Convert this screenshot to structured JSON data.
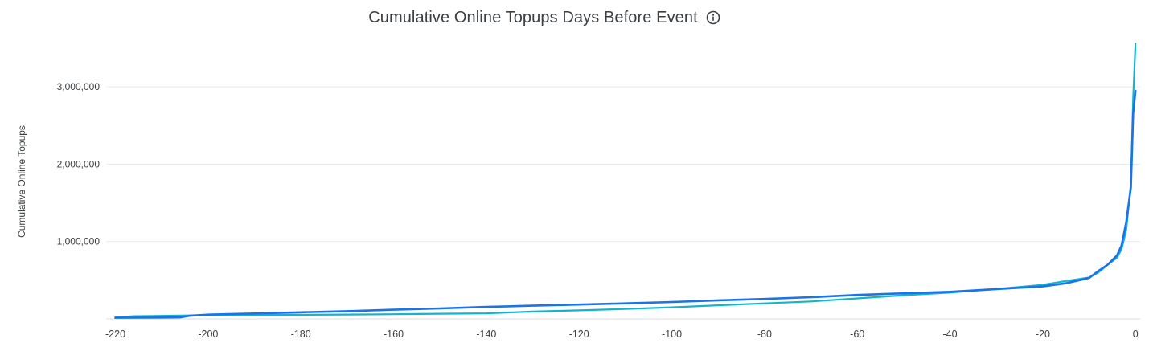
{
  "chart_data": {
    "type": "line",
    "title": "Cumulative Online Topups Days Before Event",
    "ylabel": "Cumulative Online Topups",
    "xlim": [
      -222,
      1
    ],
    "ylim": [
      0,
      3500000
    ],
    "grid": true,
    "legend": "none",
    "x_ticks": [
      -220,
      -200,
      -180,
      -160,
      -140,
      -120,
      -100,
      -80,
      -60,
      -40,
      -20,
      0
    ],
    "y_ticks": [
      1000000,
      2000000,
      3000000
    ],
    "x_tick_labels": [
      "-220",
      "-200",
      "-180",
      "-160",
      "-140",
      "-120",
      "-100",
      "-80",
      "-60",
      "-40",
      "-20",
      "0"
    ],
    "y_tick_labels": [
      "1,000,000",
      "2,000,000",
      "3,000,000"
    ],
    "series": [
      {
        "color": "#12b5cb",
        "points": [
          [
            -220,
            20000
          ],
          [
            -216,
            35000
          ],
          [
            -212,
            38000
          ],
          [
            -208,
            42000
          ],
          [
            -204,
            45000
          ],
          [
            -200,
            48000
          ],
          [
            -190,
            50000
          ],
          [
            -180,
            53000
          ],
          [
            -170,
            56000
          ],
          [
            -160,
            60000
          ],
          [
            -150,
            66000
          ],
          [
            -140,
            72000
          ],
          [
            -130,
            95000
          ],
          [
            -120,
            110000
          ],
          [
            -110,
            128000
          ],
          [
            -100,
            150000
          ],
          [
            -90,
            175000
          ],
          [
            -80,
            200000
          ],
          [
            -70,
            225000
          ],
          [
            -60,
            265000
          ],
          [
            -50,
            305000
          ],
          [
            -40,
            340000
          ],
          [
            -30,
            385000
          ],
          [
            -20,
            440000
          ],
          [
            -15,
            490000
          ],
          [
            -10,
            535000
          ],
          [
            -8,
            600000
          ],
          [
            -6,
            700000
          ],
          [
            -4,
            790000
          ],
          [
            -3,
            900000
          ],
          [
            -2,
            1150000
          ],
          [
            -1,
            1750000
          ],
          [
            -0.5,
            2850000
          ],
          [
            0,
            3560000
          ]
        ]
      },
      {
        "color": "#1a73e8",
        "points": [
          [
            -220,
            15000
          ],
          [
            -210,
            18000
          ],
          [
            -206,
            20000
          ],
          [
            -204,
            40000
          ],
          [
            -200,
            55000
          ],
          [
            -190,
            70000
          ],
          [
            -180,
            85000
          ],
          [
            -170,
            100000
          ],
          [
            -160,
            118000
          ],
          [
            -150,
            135000
          ],
          [
            -140,
            155000
          ],
          [
            -130,
            170000
          ],
          [
            -120,
            185000
          ],
          [
            -110,
            200000
          ],
          [
            -100,
            218000
          ],
          [
            -90,
            240000
          ],
          [
            -80,
            258000
          ],
          [
            -70,
            280000
          ],
          [
            -60,
            310000
          ],
          [
            -50,
            330000
          ],
          [
            -40,
            350000
          ],
          [
            -30,
            385000
          ],
          [
            -20,
            420000
          ],
          [
            -15,
            460000
          ],
          [
            -10,
            530000
          ],
          [
            -8,
            620000
          ],
          [
            -6,
            700000
          ],
          [
            -4,
            820000
          ],
          [
            -3,
            950000
          ],
          [
            -2,
            1250000
          ],
          [
            -1,
            1700000
          ],
          [
            -0.5,
            2650000
          ],
          [
            0,
            2950000
          ]
        ]
      }
    ]
  }
}
